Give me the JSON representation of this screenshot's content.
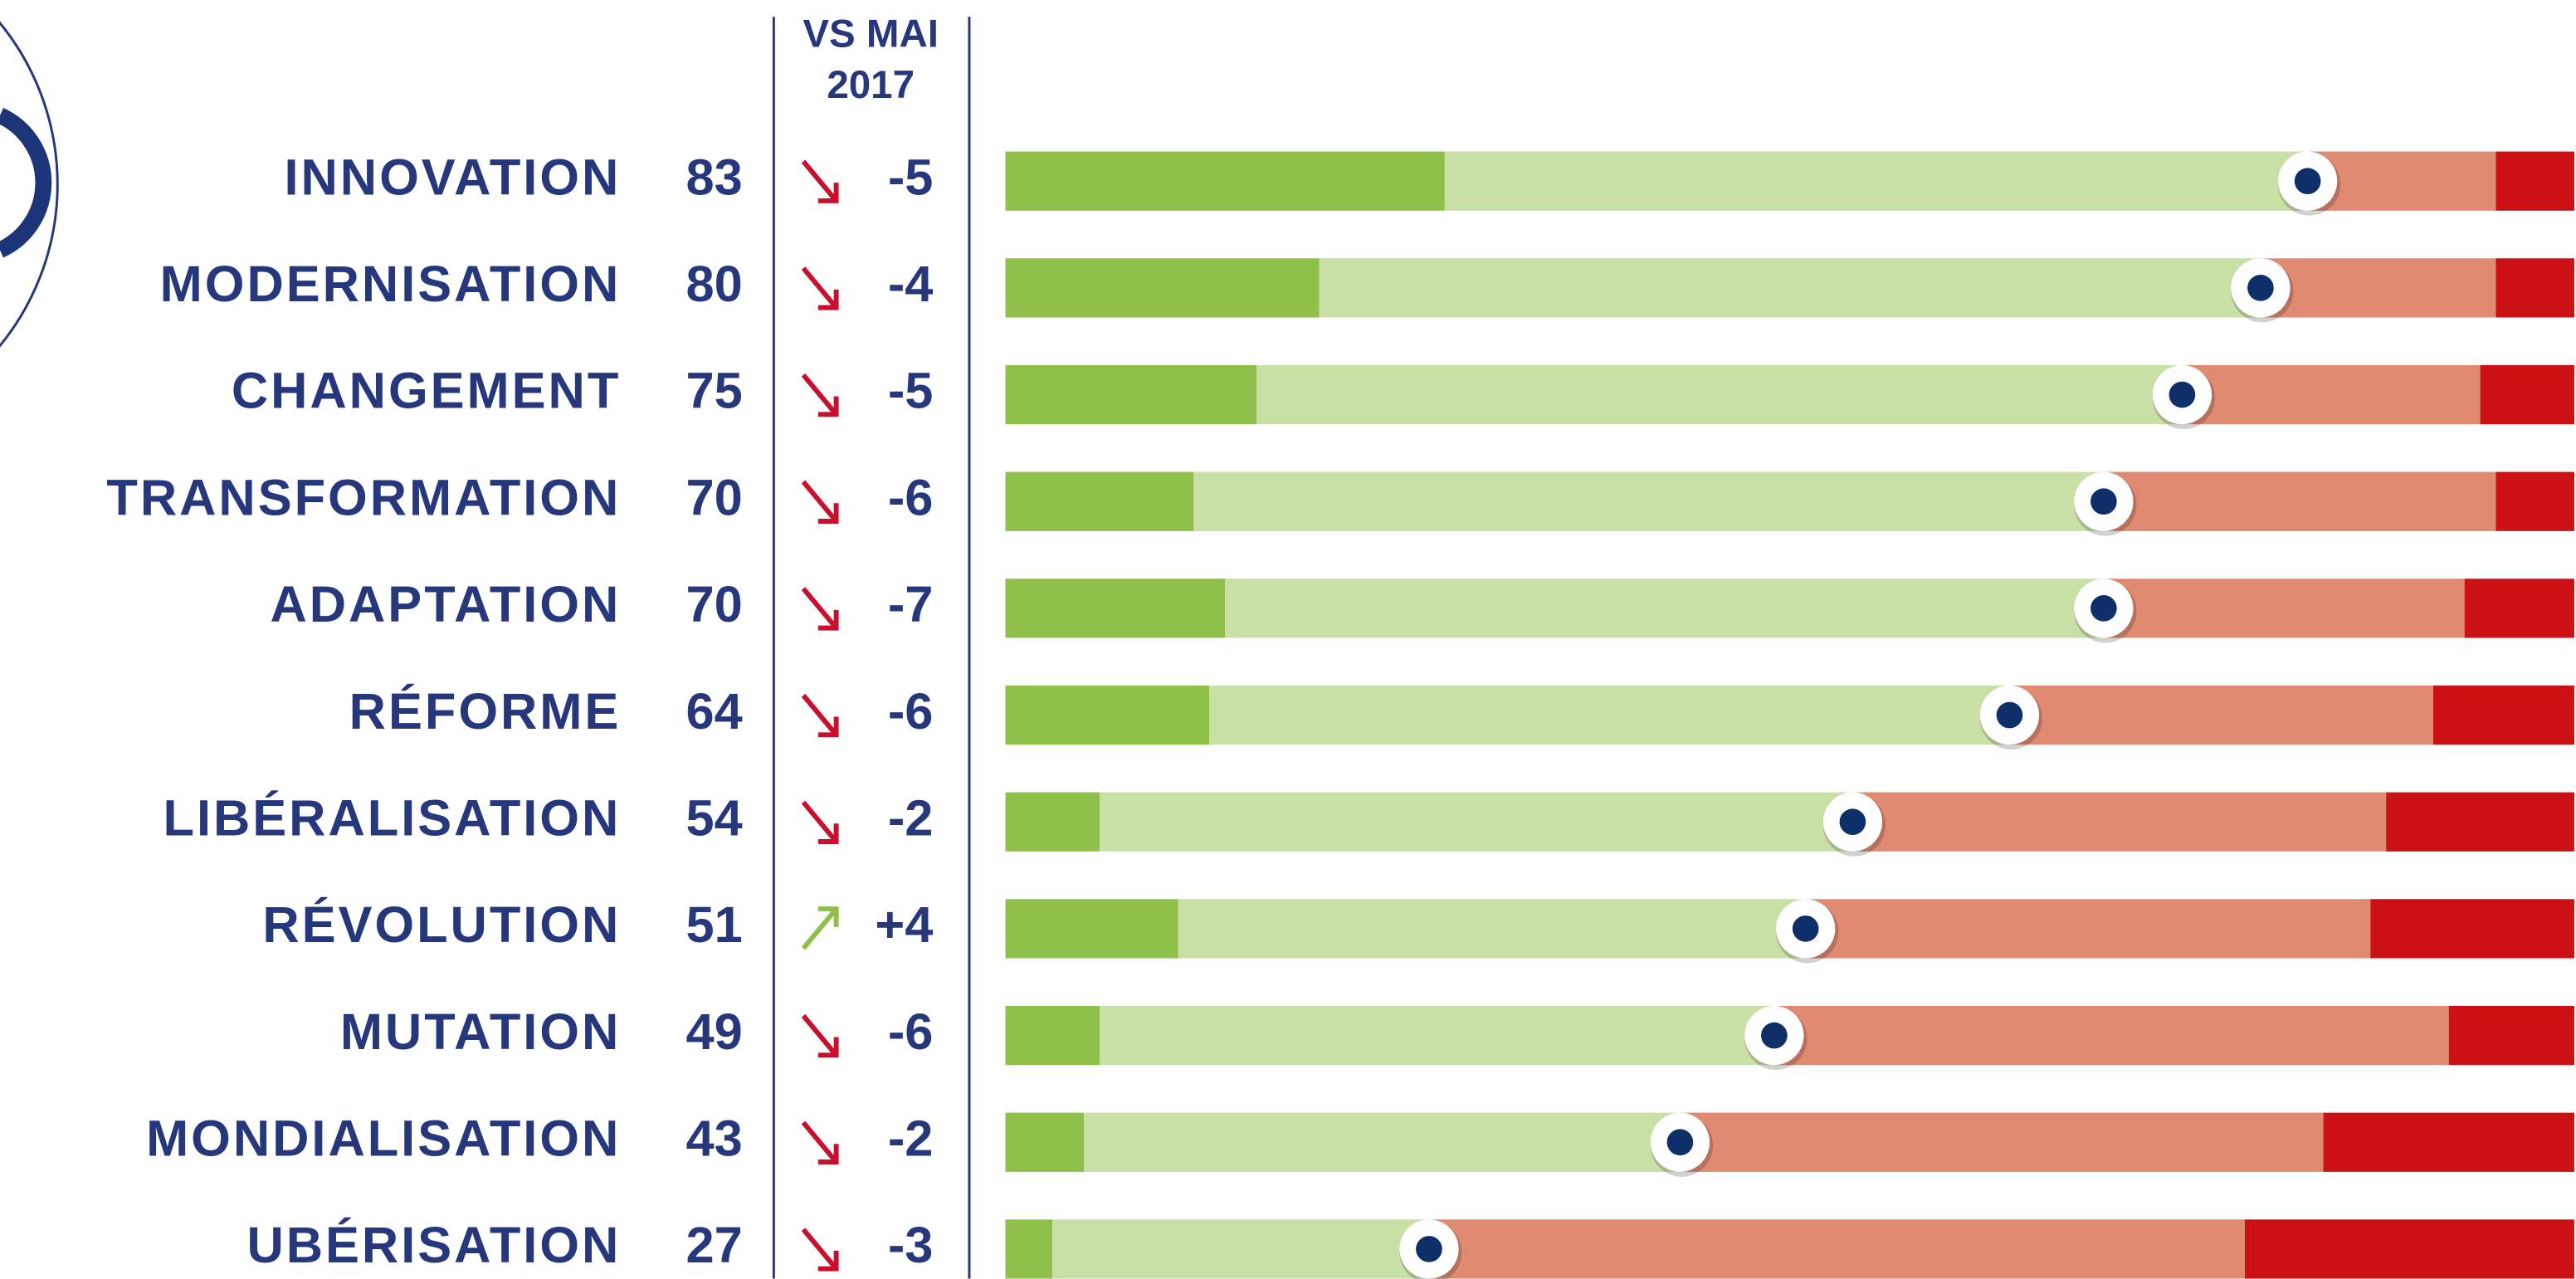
{
  "chart_data": {
    "type": "stacked-bar",
    "header": [
      "VS MAI",
      "2017"
    ],
    "categories": [
      "INNOVATION",
      "MODERNISATION",
      "CHANGEMENT",
      "TRANSFORMATION",
      "ADAPTATION",
      "RÉFORME",
      "LIBÉRALISATION",
      "RÉVOLUTION",
      "MUTATION",
      "MONDIALISATION",
      "UBÉRISATION"
    ],
    "scores": [
      83,
      80,
      75,
      70,
      70,
      64,
      54,
      51,
      49,
      43,
      27
    ],
    "changes": [
      -5,
      -4,
      -5,
      -6,
      -7,
      -6,
      -2,
      4,
      -6,
      -2,
      -3
    ],
    "change_labels": [
      "-5",
      "-4",
      "-5",
      "-6",
      "-7",
      "-6",
      "-2",
      "+4",
      "-6",
      "-2",
      "-3"
    ],
    "change_colors": {
      "down": "#c8102e",
      "up": "#8fc04a"
    },
    "xlim": [
      0,
      100
    ],
    "series": [
      {
        "color": "#8fc04a",
        "values": [
          28,
          20,
          16,
          12,
          14,
          13,
          6,
          11,
          6,
          5,
          3
        ]
      },
      {
        "color": "#c8dfa6",
        "values": [
          55,
          60,
          59,
          58,
          56,
          51,
          48,
          40,
          43,
          38,
          24
        ]
      },
      {
        "color": "#e08a72",
        "values": [
          12,
          15,
          19,
          25,
          23,
          27,
          34,
          36,
          43,
          41,
          52
        ]
      },
      {
        "color": "#cc1114",
        "values": [
          5,
          5,
          6,
          5,
          7,
          9,
          12,
          13,
          8,
          16,
          21
        ]
      }
    ]
  }
}
